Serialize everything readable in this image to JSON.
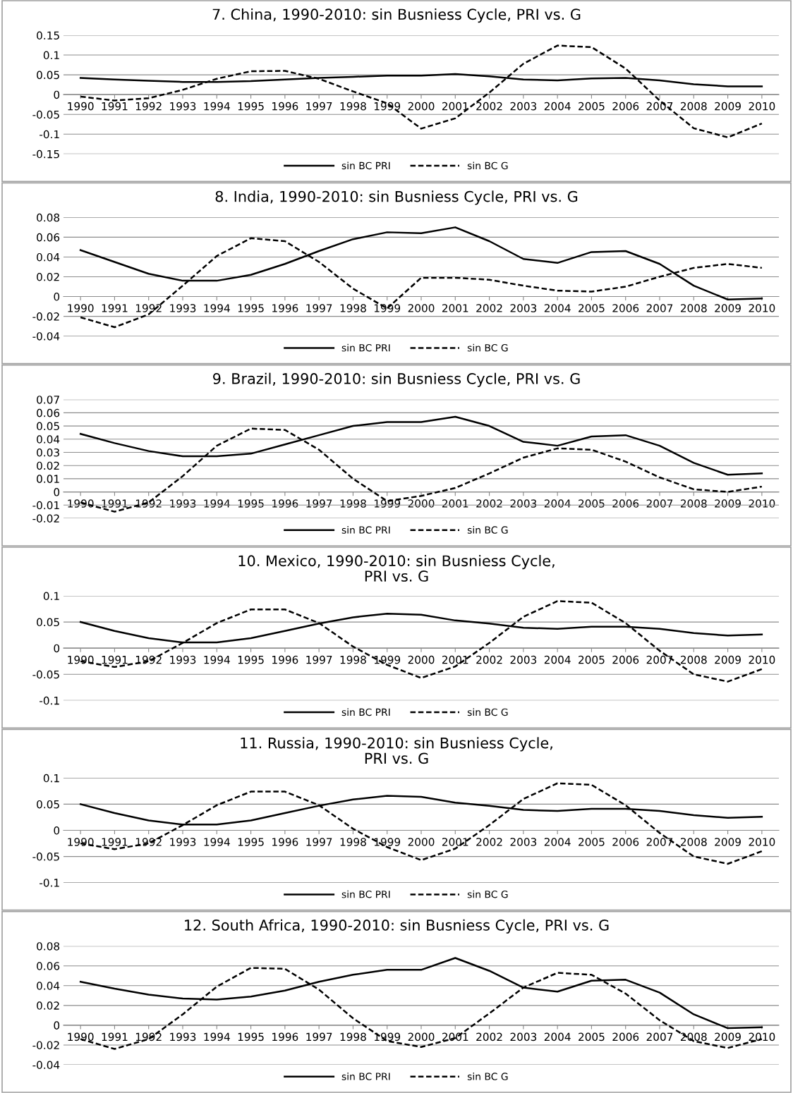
{
  "chart_data": [
    {
      "type": "line",
      "title": "7. China, 1990-2010: sin Busniess Cycle, PRI vs. G",
      "categories": [
        "1990",
        "1991",
        "1992",
        "1993",
        "1994",
        "1995",
        "1996",
        "1997",
        "1998",
        "1999",
        "2000",
        "2001",
        "2002",
        "2003",
        "2004",
        "2005",
        "2006",
        "2007",
        "2008",
        "2009",
        "2010"
      ],
      "ylim": [
        -0.15,
        0.15
      ],
      "yticks": [
        -0.15,
        -0.1,
        -0.05,
        0,
        0.05,
        0.1,
        0.15
      ],
      "grid": "y",
      "legend": "bottom",
      "series": [
        {
          "name": "sin BC PRI",
          "color": "#000000",
          "line_style": "solid",
          "values": [
            0.042,
            0.038,
            0.035,
            0.032,
            0.032,
            0.034,
            0.038,
            0.042,
            0.045,
            0.048,
            0.048,
            0.052,
            0.046,
            0.038,
            0.036,
            0.041,
            0.042,
            0.036,
            0.026,
            0.021,
            0.021
          ]
        },
        {
          "name": "sin BC G",
          "color": "#000000",
          "line_style": "dashed",
          "values": [
            -0.005,
            -0.015,
            -0.009,
            0.012,
            0.04,
            0.059,
            0.06,
            0.04,
            0.008,
            -0.022,
            -0.086,
            -0.06,
            0.005,
            0.078,
            0.124,
            0.12,
            0.066,
            -0.015,
            -0.085,
            -0.108,
            -0.073
          ]
        }
      ]
    },
    {
      "type": "line",
      "title": "8. India, 1990-2010: sin Busniess Cycle, PRI vs. G",
      "categories": [
        "1990",
        "1991",
        "1992",
        "1993",
        "1994",
        "1995",
        "1996",
        "1997",
        "1998",
        "1999",
        "2000",
        "2001",
        "2002",
        "2003",
        "2004",
        "2005",
        "2006",
        "2007",
        "2008",
        "2009",
        "2010"
      ],
      "ylim": [
        -0.04,
        0.08
      ],
      "yticks": [
        -0.04,
        -0.02,
        0,
        0.02,
        0.04,
        0.06,
        0.08
      ],
      "grid": "y",
      "legend": "bottom",
      "series": [
        {
          "name": "sin BC PRI",
          "color": "#000000",
          "line_style": "solid",
          "values": [
            0.047,
            0.035,
            0.023,
            0.016,
            0.016,
            0.022,
            0.033,
            0.046,
            0.058,
            0.065,
            0.064,
            0.07,
            0.056,
            0.038,
            0.034,
            0.045,
            0.046,
            0.033,
            0.011,
            -0.003,
            -0.002
          ]
        },
        {
          "name": "sin BC G",
          "color": "#000000",
          "line_style": "dashed",
          "values": [
            -0.021,
            -0.031,
            -0.018,
            0.011,
            0.041,
            0.059,
            0.056,
            0.035,
            0.008,
            -0.012,
            0.019,
            0.019,
            0.017,
            0.011,
            0.006,
            0.005,
            0.01,
            0.02,
            0.029,
            0.033,
            0.029
          ]
        }
      ]
    },
    {
      "type": "line",
      "title": "9. Brazil, 1990-2010: sin Busniess Cycle, PRI vs. G",
      "categories": [
        "1990",
        "1991",
        "1992",
        "1993",
        "1994",
        "1995",
        "1996",
        "1997",
        "1998",
        "1999",
        "2000",
        "2001",
        "2002",
        "2003",
        "2004",
        "2005",
        "2006",
        "2007",
        "2008",
        "2009",
        "2010"
      ],
      "ylim": [
        -0.02,
        0.07
      ],
      "yticks": [
        -0.02,
        -0.01,
        0,
        0.01,
        0.02,
        0.03,
        0.04,
        0.05,
        0.06,
        0.07
      ],
      "grid": "y",
      "legend": "bottom",
      "series": [
        {
          "name": "sin BC PRI",
          "color": "#000000",
          "line_style": "solid",
          "values": [
            0.044,
            0.037,
            0.031,
            0.027,
            0.027,
            0.029,
            0.036,
            0.043,
            0.05,
            0.053,
            0.053,
            0.057,
            0.05,
            0.038,
            0.035,
            0.042,
            0.043,
            0.035,
            0.022,
            0.013,
            0.014
          ]
        },
        {
          "name": "sin BC G",
          "color": "#000000",
          "line_style": "dashed",
          "values": [
            -0.008,
            -0.015,
            -0.008,
            0.012,
            0.035,
            0.048,
            0.047,
            0.032,
            0.01,
            -0.007,
            -0.003,
            0.003,
            0.014,
            0.026,
            0.033,
            0.032,
            0.023,
            0.011,
            0.002,
            0.0,
            0.004
          ]
        }
      ]
    },
    {
      "type": "line",
      "title": "10. Mexico, 1990-2010: sin Busniess Cycle,\nPRI vs. G",
      "categories": [
        "1990",
        "1991",
        "1992",
        "1993",
        "1994",
        "1995",
        "1996",
        "1997",
        "1998",
        "1999",
        "2000",
        "2001",
        "2002",
        "2003",
        "2004",
        "2005",
        "2006",
        "2007",
        "2008",
        "2009",
        "2010"
      ],
      "ylim": [
        -0.1,
        0.1
      ],
      "yticks": [
        -0.1,
        -0.05,
        0,
        0.05,
        0.1
      ],
      "grid": "y",
      "legend": "bottom",
      "series": [
        {
          "name": "sin BC PRI",
          "color": "#000000",
          "line_style": "solid",
          "values": [
            0.05,
            0.033,
            0.019,
            0.011,
            0.011,
            0.019,
            0.033,
            0.047,
            0.059,
            0.066,
            0.064,
            0.053,
            0.047,
            0.039,
            0.037,
            0.041,
            0.041,
            0.037,
            0.029,
            0.024,
            0.026
          ]
        },
        {
          "name": "sin BC G",
          "color": "#000000",
          "line_style": "dashed",
          "values": [
            -0.025,
            -0.036,
            -0.025,
            0.01,
            0.048,
            0.074,
            0.074,
            0.048,
            0.003,
            -0.032,
            -0.057,
            -0.035,
            0.01,
            0.06,
            0.09,
            0.087,
            0.048,
            -0.005,
            -0.05,
            -0.064,
            -0.04
          ]
        }
      ]
    },
    {
      "type": "line",
      "title": "11. Russia, 1990-2010: sin Busniess Cycle,\nPRI vs. G",
      "categories": [
        "1990",
        "1991",
        "1992",
        "1993",
        "1994",
        "1995",
        "1996",
        "1997",
        "1998",
        "1999",
        "2000",
        "2001",
        "2002",
        "2003",
        "2004",
        "2005",
        "2006",
        "2007",
        "2008",
        "2009",
        "2010"
      ],
      "ylim": [
        -0.1,
        0.1
      ],
      "yticks": [
        -0.1,
        -0.05,
        0,
        0.05,
        0.1
      ],
      "grid": "y",
      "legend": "bottom",
      "series": [
        {
          "name": "sin BC PRI",
          "color": "#000000",
          "line_style": "solid",
          "values": [
            0.05,
            0.033,
            0.019,
            0.011,
            0.011,
            0.019,
            0.033,
            0.047,
            0.059,
            0.066,
            0.064,
            0.053,
            0.047,
            0.039,
            0.037,
            0.041,
            0.041,
            0.037,
            0.029,
            0.024,
            0.026
          ]
        },
        {
          "name": "sin BC G",
          "color": "#000000",
          "line_style": "dashed",
          "values": [
            -0.025,
            -0.036,
            -0.025,
            0.01,
            0.048,
            0.074,
            0.074,
            0.048,
            0.003,
            -0.032,
            -0.057,
            -0.035,
            0.01,
            0.06,
            0.09,
            0.087,
            0.048,
            -0.005,
            -0.05,
            -0.064,
            -0.04
          ]
        }
      ]
    },
    {
      "type": "line",
      "title": "12. South Africa, 1990-2010: sin Busniess Cycle, PRI vs. G",
      "categories": [
        "1990",
        "1991",
        "1992",
        "1993",
        "1994",
        "1995",
        "1996",
        "1997",
        "1998",
        "1999",
        "2000",
        "2001",
        "2002",
        "2003",
        "2004",
        "2005",
        "2006",
        "2007",
        "2008",
        "2009",
        "2010"
      ],
      "ylim": [
        -0.04,
        0.08
      ],
      "yticks": [
        -0.04,
        -0.02,
        0,
        0.02,
        0.04,
        0.06,
        0.08
      ],
      "grid": "y",
      "legend": "bottom",
      "series": [
        {
          "name": "sin BC PRI",
          "color": "#000000",
          "line_style": "solid",
          "values": [
            0.044,
            0.037,
            0.031,
            0.027,
            0.026,
            0.029,
            0.035,
            0.044,
            0.051,
            0.056,
            0.056,
            0.068,
            0.055,
            0.038,
            0.034,
            0.045,
            0.046,
            0.033,
            0.011,
            -0.003,
            -0.002
          ]
        },
        {
          "name": "sin BC G",
          "color": "#000000",
          "line_style": "dashed",
          "values": [
            -0.014,
            -0.024,
            -0.014,
            0.011,
            0.039,
            0.058,
            0.057,
            0.036,
            0.007,
            -0.016,
            -0.022,
            -0.013,
            0.012,
            0.038,
            0.053,
            0.051,
            0.032,
            0.005,
            -0.016,
            -0.023,
            -0.014
          ]
        }
      ]
    }
  ]
}
